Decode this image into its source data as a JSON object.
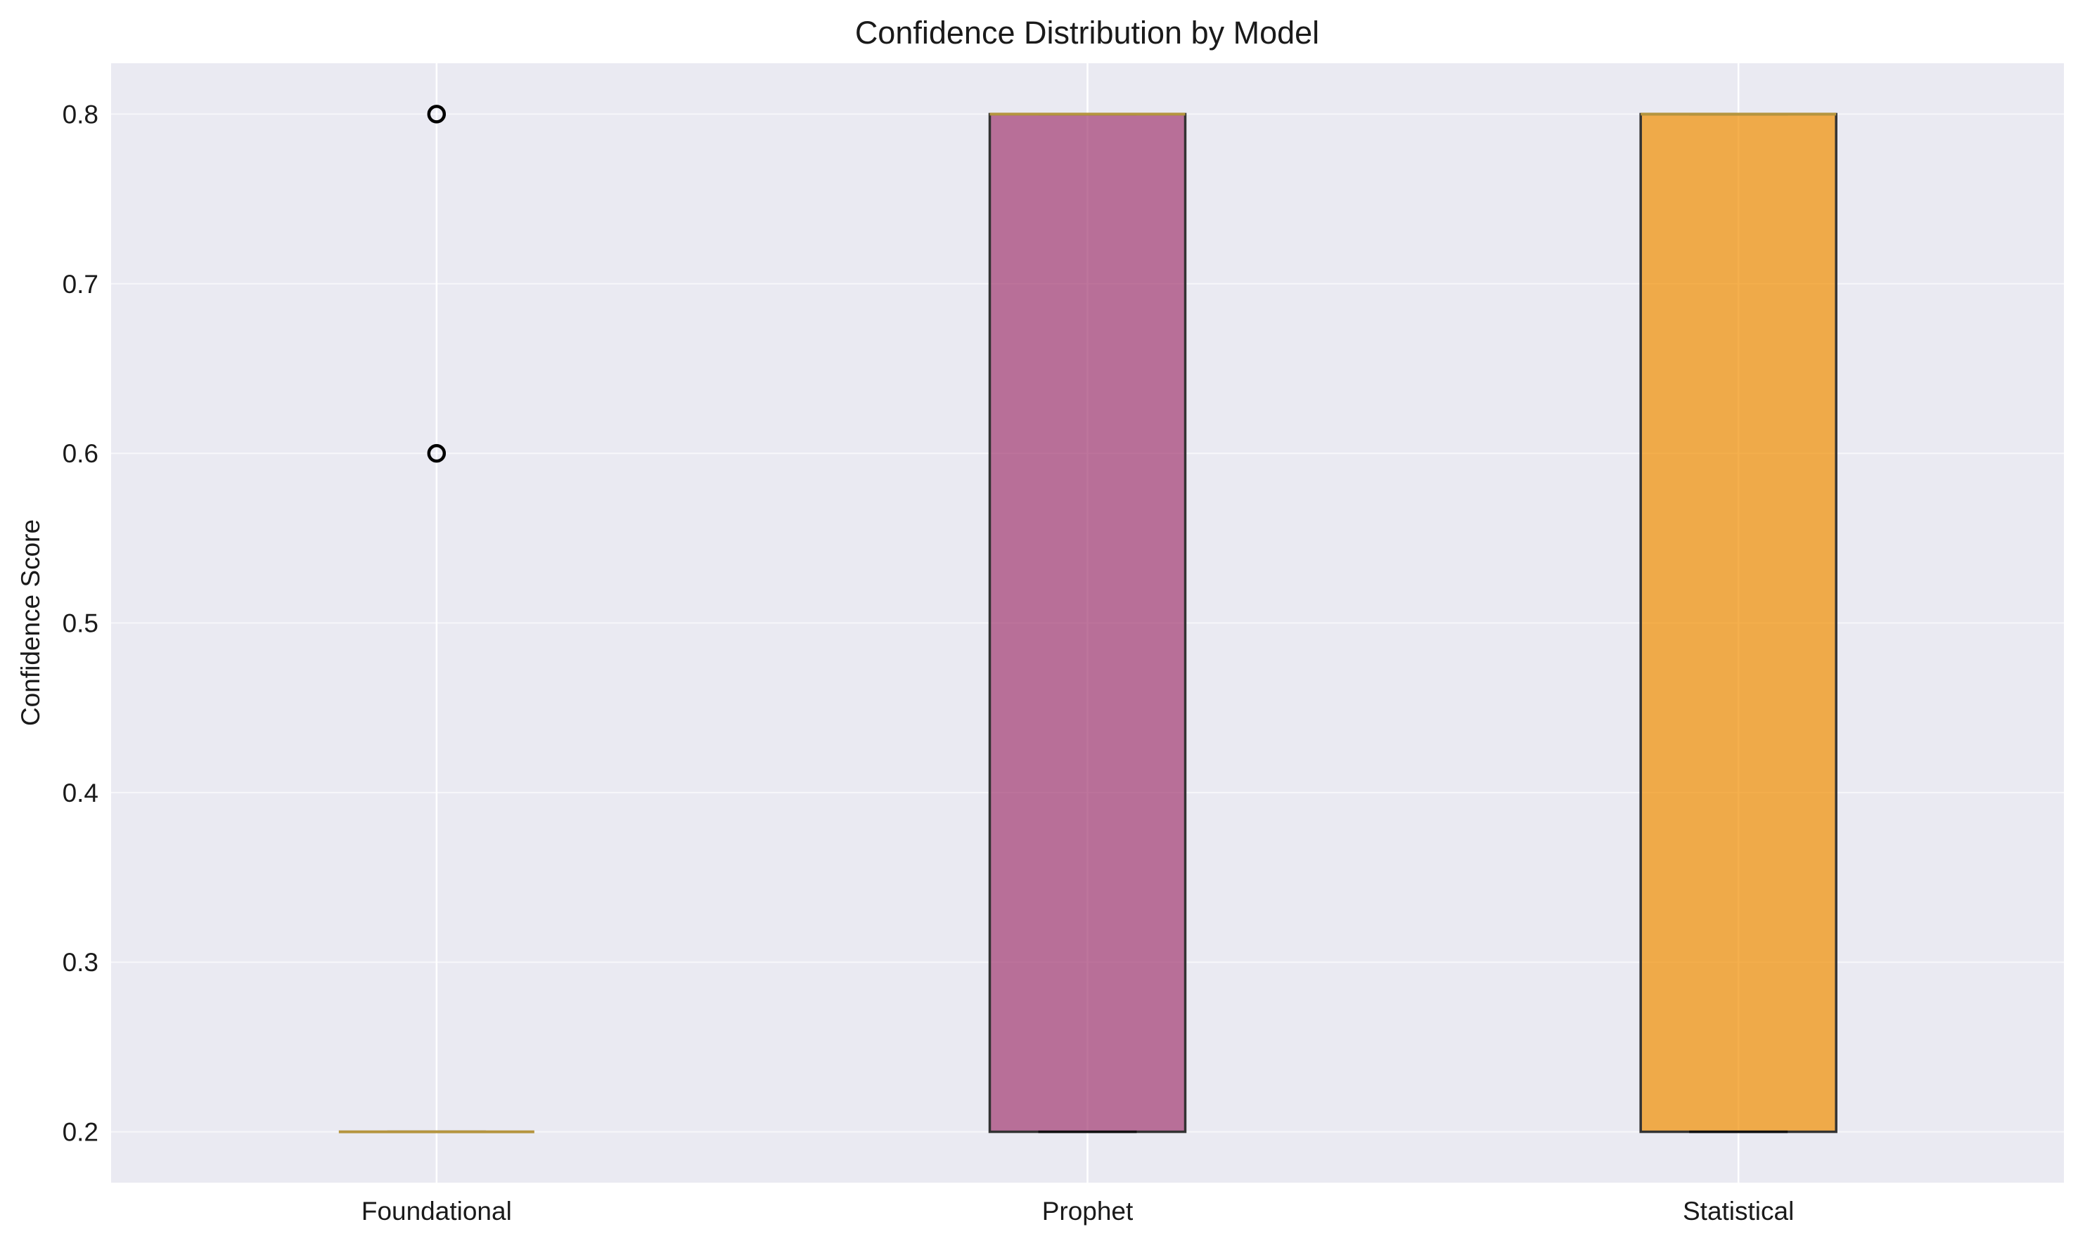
{
  "chart_data": {
    "type": "box",
    "title": "Confidence Distribution by Model",
    "xlabel": "",
    "ylabel": "Confidence Score",
    "categories": [
      "Foundational",
      "Prophet",
      "Statistical"
    ],
    "ylim": [
      0.17,
      0.83
    ],
    "yticks": [
      0.2,
      0.3,
      0.4,
      0.5,
      0.6,
      0.7,
      0.8
    ],
    "ytick_labels": [
      "0.2",
      "0.3",
      "0.4",
      "0.5",
      "0.6",
      "0.7",
      "0.8"
    ],
    "grid": true,
    "legend": "none",
    "series": [
      {
        "category": "Foundational",
        "q1": 0.2,
        "median": 0.2,
        "q3": 0.2,
        "whisker_low": 0.2,
        "whisker_high": 0.2,
        "outliers": [
          0.6,
          0.8
        ],
        "color": "#d9d9d9",
        "median_color": "#b5953f"
      },
      {
        "category": "Prophet",
        "q1": 0.2,
        "median": 0.8,
        "q3": 0.8,
        "whisker_low": 0.2,
        "whisker_high": 0.8,
        "outliers": [],
        "color": "#a23b72",
        "median_color": "#b5953f"
      },
      {
        "category": "Statistical",
        "q1": 0.2,
        "median": 0.8,
        "q3": 0.8,
        "whisker_low": 0.2,
        "whisker_high": 0.8,
        "outliers": [],
        "color": "#f18f01",
        "median_color": "#b5953f"
      }
    ],
    "colors": {
      "plot_background": "#eaeaf2",
      "grid": "#ffffff",
      "box_edge": "#333333",
      "outlier_edge": "#000000"
    }
  }
}
